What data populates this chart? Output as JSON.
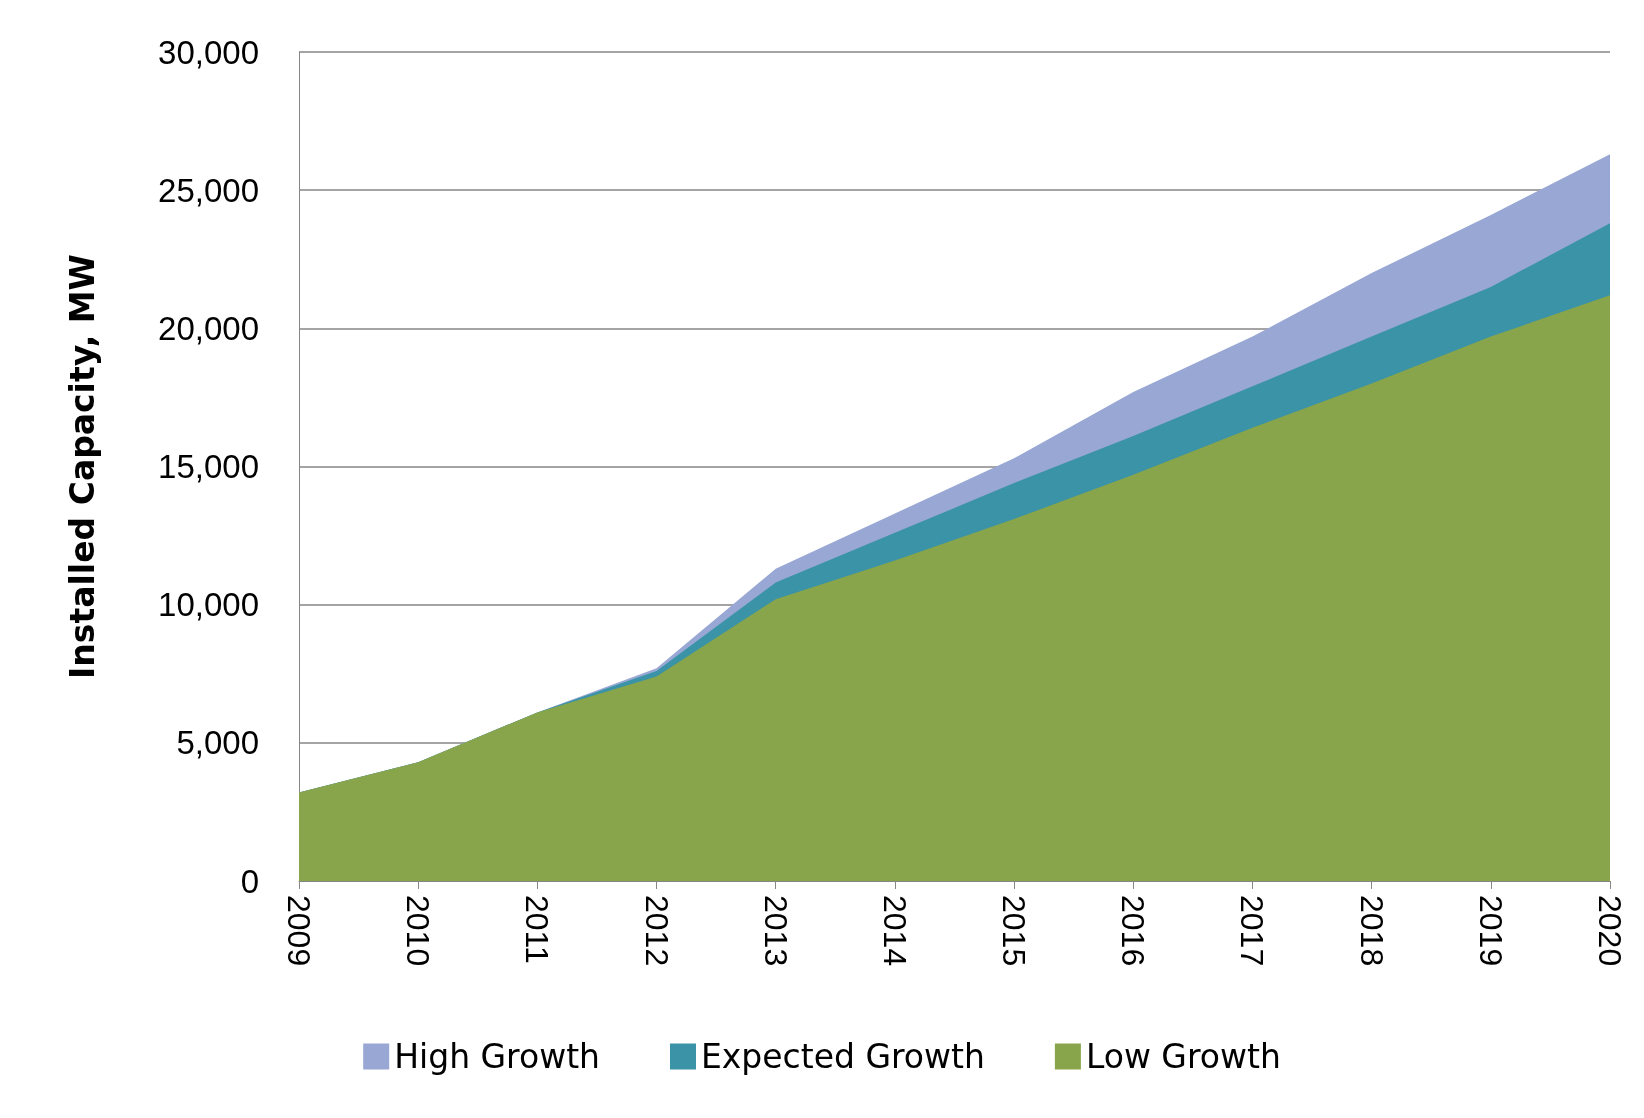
{
  "chart_data": {
    "type": "area",
    "ylabel": "Installed Capacity, MW",
    "categories": [
      "2009",
      "2010",
      "2011",
      "2012",
      "2013",
      "2014",
      "2015",
      "2016",
      "2017",
      "2018",
      "2019",
      "2020"
    ],
    "series": [
      {
        "name": "High Growth",
        "color": "#98a7d3",
        "values": [
          3200,
          4300,
          6100,
          7700,
          11300,
          13300,
          15300,
          17700,
          19700,
          22000,
          24100,
          26300
        ]
      },
      {
        "name": "Expected Growth",
        "color": "#3a93a6",
        "values": [
          3200,
          4300,
          6100,
          7600,
          10800,
          12600,
          14400,
          16100,
          17900,
          19700,
          21500,
          23800
        ]
      },
      {
        "name": "Low Growth",
        "color": "#88a54c",
        "values": [
          3200,
          4300,
          6100,
          7400,
          10200,
          11600,
          13100,
          14700,
          16400,
          18000,
          19700,
          21200
        ]
      }
    ],
    "ylim": [
      0,
      30000
    ],
    "yticks": [
      0,
      {
        "value": 5000,
        "label": "5,000"
      },
      {
        "value": 10000,
        "label": "10,000"
      },
      {
        "value": 15000,
        "label": "15,000"
      },
      {
        "value": 20000,
        "label": "20,000"
      },
      {
        "value": 25000,
        "label": "25,000"
      },
      {
        "value": 30000,
        "label": "30,000"
      }
    ],
    "grid": "y",
    "legend": "bottom"
  }
}
